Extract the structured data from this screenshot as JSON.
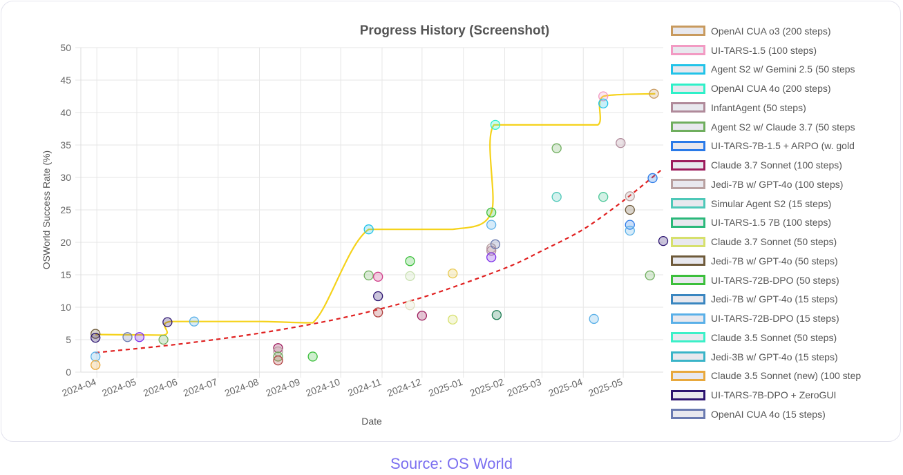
{
  "chart_data": {
    "type": "scatter",
    "title": "Progress History (Screenshot)",
    "xlabel": "Date",
    "ylabel": "OSWorld Success Rate (%)",
    "ylim": [
      0,
      50
    ],
    "xlim": [
      "2024-03-20",
      "2025-05-31"
    ],
    "y_ticks": [
      "0",
      "5",
      "10",
      "15",
      "20",
      "25",
      "30",
      "35",
      "40",
      "45",
      "50"
    ],
    "x_ticks": [
      "2024-04",
      "2024-05",
      "2024-06",
      "2024-07",
      "2024-08",
      "2024-09",
      "2024-10",
      "2024-11",
      "2024-12",
      "2025-01",
      "2025-02",
      "2025-03",
      "2025-04",
      "2025-05"
    ],
    "grid": true,
    "legend_position": "right",
    "legend": [
      {
        "label": "OpenAI CUA o3 (200 steps)",
        "color": "#c89a5e"
      },
      {
        "label": "UI-TARS-1.5 (100 steps)",
        "color": "#f29ac3"
      },
      {
        "label": "Agent S2 w/ Gemini 2.5 (50 steps",
        "color": "#22c3e8"
      },
      {
        "label": "OpenAI CUA 4o (200 steps)",
        "color": "#2ff0c8"
      },
      {
        "label": "InfantAgent (50 steps)",
        "color": "#b08a9a"
      },
      {
        "label": "Agent S2 w/ Claude 3.7 (50 steps",
        "color": "#6fae5e"
      },
      {
        "label": "UI-TARS-7B-1.5 + ARPO (w. gold",
        "color": "#2a7ae8"
      },
      {
        "label": "Claude 3.7 Sonnet (100 steps)",
        "color": "#9c1c5c"
      },
      {
        "label": "Jedi-7B w/ GPT-4o (100 steps)",
        "color": "#b8a0a0"
      },
      {
        "label": "Simular Agent S2 (15 steps)",
        "color": "#4ec8b8"
      },
      {
        "label": "UI-TARS-1.5 7B (100 steps)",
        "color": "#2ab87a"
      },
      {
        "label": "Claude 3.7 Sonnet (50 steps)",
        "color": "#d6e06c"
      },
      {
        "label": "Jedi-7B w/ GPT-4o (50 steps)",
        "color": "#6e5a3a"
      },
      {
        "label": "UI-TARS-72B-DPO (50 steps)",
        "color": "#3cbf3c"
      },
      {
        "label": "Jedi-7B w/ GPT-4o (15 steps)",
        "color": "#3a86c0"
      },
      {
        "label": "UI-TARS-72B-DPO (15 steps)",
        "color": "#5ab0e8"
      },
      {
        "label": "Claude 3.5 Sonnet (50 steps)",
        "color": "#3cf0c8"
      },
      {
        "label": "Jedi-3B w/ GPT-4o (15 steps)",
        "color": "#3ab4c8"
      },
      {
        "label": "Claude 3.5 Sonnet (new) (100 step",
        "color": "#e8a83c"
      },
      {
        "label": "UI-TARS-7B-DPO + ZeroGUI",
        "color": "#2c1470"
      },
      {
        "label": "OpenAI CUA 4o (15 steps)",
        "color": "#6a7ab0"
      }
    ],
    "frontier_line": {
      "color": "#f5d21a",
      "points": [
        {
          "x": "2024-03-31",
          "y": 5.8
        },
        {
          "x": "2024-05-21",
          "y": 5.7
        },
        {
          "x": "2024-05-26",
          "y": 7.8
        },
        {
          "x": "2024-08-01",
          "y": 7.8
        },
        {
          "x": "2024-09-10",
          "y": 7.6
        },
        {
          "x": "2024-10-22",
          "y": 22.0
        },
        {
          "x": "2024-12-24",
          "y": 22.0
        },
        {
          "x": "2025-01-22",
          "y": 24.6
        },
        {
          "x": "2025-01-24",
          "y": 38.1
        },
        {
          "x": "2025-03-15",
          "y": 38.1
        },
        {
          "x": "2025-04-12",
          "y": 38.1
        },
        {
          "x": "2025-04-16",
          "y": 42.5
        },
        {
          "x": "2025-05-25",
          "y": 42.9
        }
      ]
    },
    "trend_line": {
      "style": "dashed",
      "color": "#e02020",
      "points": [
        {
          "x": "2024-03-31",
          "y": 3.0
        },
        {
          "x": "2024-06-01",
          "y": 4.3
        },
        {
          "x": "2024-08-01",
          "y": 6.0
        },
        {
          "x": "2024-10-01",
          "y": 8.3
        },
        {
          "x": "2024-12-01",
          "y": 11.5
        },
        {
          "x": "2025-02-01",
          "y": 16.0
        },
        {
          "x": "2025-03-01",
          "y": 18.7
        },
        {
          "x": "2025-04-01",
          "y": 22.0
        },
        {
          "x": "2025-05-01",
          "y": 26.4
        },
        {
          "x": "2025-05-31",
          "y": 31.4
        }
      ]
    },
    "points": [
      {
        "x": "2024-03-31",
        "y": 5.9,
        "color": "#6e5a3a"
      },
      {
        "x": "2024-03-31",
        "y": 5.3,
        "color": "#2c1470"
      },
      {
        "x": "2024-03-31",
        "y": 2.4,
        "color": "#5ab0e8"
      },
      {
        "x": "2024-03-31",
        "y": 1.1,
        "color": "#e8a83c"
      },
      {
        "x": "2024-04-24",
        "y": 5.4,
        "color": "#6a7ab0"
      },
      {
        "x": "2024-05-03",
        "y": 5.4,
        "color": "#7a2ae8"
      },
      {
        "x": "2024-05-21",
        "y": 5.0,
        "color": "#6fae5e"
      },
      {
        "x": "2024-05-24",
        "y": 7.7,
        "color": "#2c1470"
      },
      {
        "x": "2024-06-13",
        "y": 7.8,
        "color": "#5ab0e8"
      },
      {
        "x": "2024-08-15",
        "y": 3.7,
        "color": "#9c1c5c"
      },
      {
        "x": "2024-08-15",
        "y": 3.2,
        "color": "#b8a0a0"
      },
      {
        "x": "2024-08-15",
        "y": 2.4,
        "color": "#6fae5e"
      },
      {
        "x": "2024-08-15",
        "y": 1.8,
        "color": "#b04040"
      },
      {
        "x": "2024-09-10",
        "y": 2.4,
        "color": "#3cbf3c"
      },
      {
        "x": "2024-10-22",
        "y": 22.0,
        "color": "#22c3e8"
      },
      {
        "x": "2024-10-22",
        "y": 14.9,
        "color": "#6fae5e"
      },
      {
        "x": "2024-10-29",
        "y": 14.7,
        "color": "#d0408a"
      },
      {
        "x": "2024-10-29",
        "y": 11.7,
        "color": "#2c1470"
      },
      {
        "x": "2024-10-29",
        "y": 9.2,
        "color": "#b04040"
      },
      {
        "x": "2024-11-22",
        "y": 17.1,
        "color": "#3cbf3c"
      },
      {
        "x": "2024-11-22",
        "y": 14.8,
        "color": "#c8e0b0"
      },
      {
        "x": "2024-11-22",
        "y": 10.3,
        "color": "#e0e0c0"
      },
      {
        "x": "2024-12-01",
        "y": 8.7,
        "color": "#9c1c5c"
      },
      {
        "x": "2024-12-24",
        "y": 15.2,
        "color": "#e8c84c"
      },
      {
        "x": "2024-12-24",
        "y": 8.1,
        "color": "#d6e06c"
      },
      {
        "x": "2025-01-22",
        "y": 24.6,
        "color": "#3cbf3c"
      },
      {
        "x": "2025-01-22",
        "y": 22.7,
        "color": "#5ab0e8"
      },
      {
        "x": "2025-01-22",
        "y": 19.1,
        "color": "#b8a0a0"
      },
      {
        "x": "2025-01-22",
        "y": 18.7,
        "color": "#b08a9a"
      },
      {
        "x": "2025-01-22",
        "y": 17.7,
        "color": "#7a2ae8"
      },
      {
        "x": "2025-01-25",
        "y": 19.7,
        "color": "#6a7ab0"
      },
      {
        "x": "2025-01-25",
        "y": 38.1,
        "color": "#2ff0c8"
      },
      {
        "x": "2025-01-26",
        "y": 8.8,
        "color": "#1a7a50"
      },
      {
        "x": "2025-03-12",
        "y": 34.5,
        "color": "#6fae5e"
      },
      {
        "x": "2025-03-12",
        "y": 27.0,
        "color": "#4ec8b8"
      },
      {
        "x": "2025-04-09",
        "y": 8.2,
        "color": "#5ab0e8"
      },
      {
        "x": "2025-04-16",
        "y": 42.5,
        "color": "#f29ac3"
      },
      {
        "x": "2025-04-16",
        "y": 41.4,
        "color": "#22c3e8"
      },
      {
        "x": "2025-04-16",
        "y": 27.0,
        "color": "#4ec89a"
      },
      {
        "x": "2025-04-29",
        "y": 35.3,
        "color": "#b08a9a"
      },
      {
        "x": "2025-05-06",
        "y": 27.1,
        "color": "#b8a0a0"
      },
      {
        "x": "2025-05-06",
        "y": 25.0,
        "color": "#6e5a3a"
      },
      {
        "x": "2025-05-06",
        "y": 22.7,
        "color": "#2a7ae8"
      },
      {
        "x": "2025-05-06",
        "y": 21.8,
        "color": "#5ab0e8"
      },
      {
        "x": "2025-05-21",
        "y": 14.9,
        "color": "#6fae5e"
      },
      {
        "x": "2025-05-23",
        "y": 29.9,
        "color": "#2a7ae8"
      },
      {
        "x": "2025-05-24",
        "y": 42.9,
        "color": "#c89a5e"
      },
      {
        "x": "2025-05-31",
        "y": 20.2,
        "color": "#2c1470"
      }
    ]
  },
  "source": "Source: OS World"
}
